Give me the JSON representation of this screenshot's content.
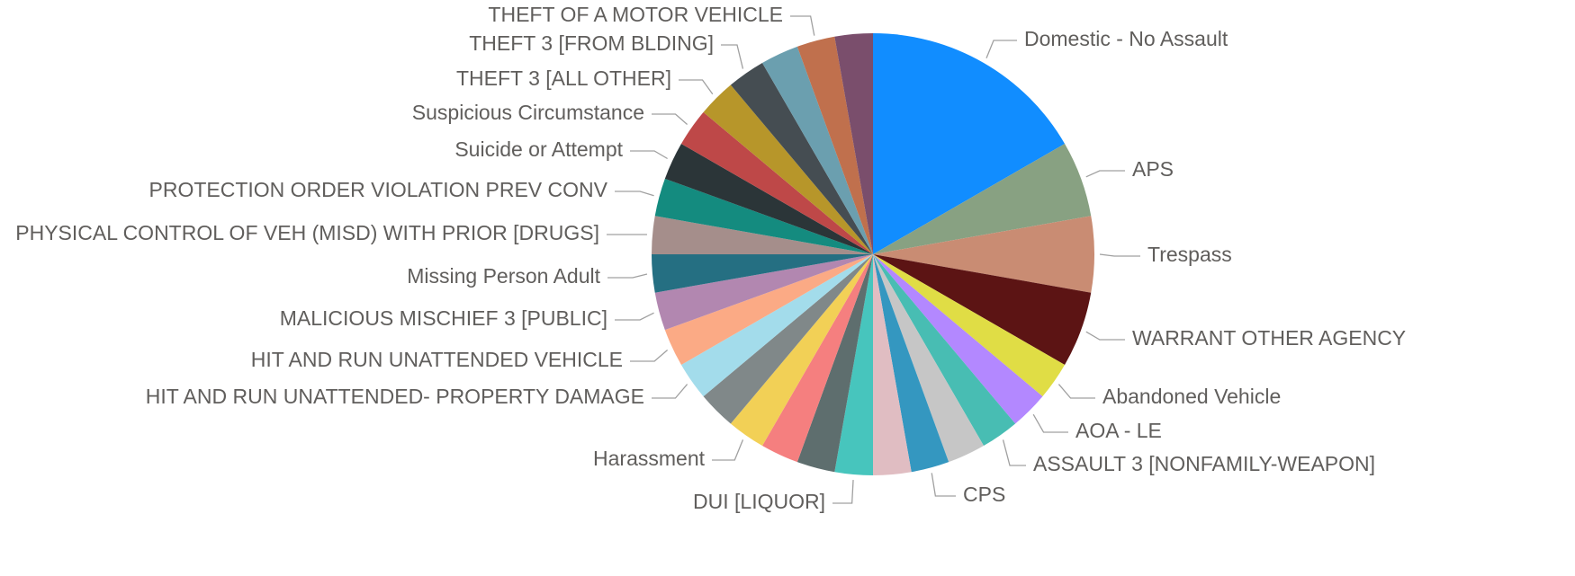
{
  "chart_data": {
    "type": "pie",
    "categories": [
      "Domestic - No Assault",
      "APS",
      "Trespass",
      "WARRANT OTHER AGENCY",
      "Abandoned Vehicle",
      "AOA - LE",
      "ASSAULT 3 [NONFAMILY-WEAPON]",
      null,
      "CPS",
      null,
      "DUI [LIQUOR]",
      null,
      null,
      "Harassment",
      null,
      "HIT AND RUN UNATTENDED- PROPERTY DAMAGE",
      "HIT AND RUN UNATTENDED VEHICLE",
      "MALICIOUS MISCHIEF 3 [PUBLIC]",
      "Missing Person Adult",
      "PHYSICAL CONTROL OF VEH (MISD) WITH PRIOR [DRUGS]",
      "PROTECTION ORDER VIOLATION PREV CONV",
      "Suicide or Attempt",
      "Suspicious Circumstance",
      "THEFT 3 [ALL OTHER]",
      "THEFT 3 [FROM BLDING]",
      null,
      "THEFT OF A MOTOR VEHICLE",
      null
    ],
    "values": [
      6,
      2,
      2,
      2,
      1,
      1,
      1,
      1,
      1,
      1,
      1,
      1,
      1,
      1,
      1,
      1,
      1,
      1,
      1,
      1,
      1,
      1,
      1,
      1,
      1,
      1,
      1,
      1
    ],
    "colors": [
      "#118dff",
      "#88a182",
      "#c98c73",
      "#5c1414",
      "#e0dd45",
      "#b388ff",
      "#48bdb3",
      "#c6c6c6",
      "#3497c0",
      "#e0bdc2",
      "#47c5bd",
      "#5e6e6e",
      "#f57f7f",
      "#f2d056",
      "#808889",
      "#a3dceb",
      "#fbaa85",
      "#b287b0",
      "#256f82",
      "#a58e8b",
      "#148b7f",
      "#2b3538",
      "#be4848",
      "#b7962a",
      "#454d52",
      "#6b9faf",
      "#c0704d",
      "#7a4e6c"
    ]
  }
}
